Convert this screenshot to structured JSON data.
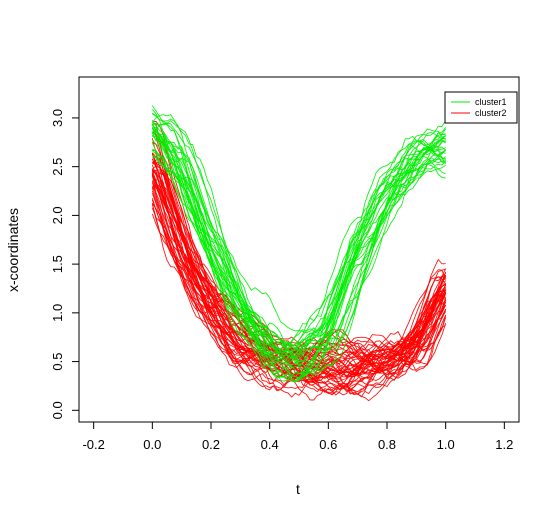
{
  "chart_data": {
    "type": "line",
    "title": "",
    "xlabel": "t",
    "ylabel": "x-coordinates",
    "xlim": [
      -0.25,
      1.25
    ],
    "ylim": [
      -0.12,
      3.42
    ],
    "xticks": [
      -0.2,
      0.0,
      0.2,
      0.4,
      0.6,
      0.8,
      1.0,
      1.2
    ],
    "xtick_labels": [
      "-0.2",
      "0.0",
      "0.2",
      "0.4",
      "0.6",
      "0.8",
      "1.0",
      "1.2"
    ],
    "yticks": [
      0.0,
      0.5,
      1.0,
      1.5,
      2.0,
      2.5,
      3.0
    ],
    "ytick_labels": [
      "0.0",
      "0.5",
      "1.0",
      "1.5",
      "2.0",
      "2.5",
      "3.0"
    ],
    "grid": false,
    "legend_position": "top-right",
    "legend": [
      {
        "label": "cluster1",
        "color": "#00ee00"
      },
      {
        "label": "cluster2",
        "color": "#ff0000"
      }
    ],
    "series": [
      {
        "name": "cluster1",
        "color": "#00ee00",
        "curve_count": 30,
        "representative": {
          "x": [
            0.0,
            0.1,
            0.2,
            0.3,
            0.4,
            0.5,
            0.6,
            0.7,
            0.8,
            0.9,
            1.0
          ],
          "y": [
            2.9,
            2.55,
            1.75,
            1.05,
            0.6,
            0.5,
            0.75,
            1.55,
            2.2,
            2.6,
            2.7
          ]
        }
      },
      {
        "name": "cluster2",
        "color": "#ff0000",
        "curve_count": 50,
        "representative": {
          "x": [
            0.0,
            0.1,
            0.2,
            0.3,
            0.4,
            0.5,
            0.6,
            0.7,
            0.8,
            0.9,
            1.0
          ],
          "y": [
            2.6,
            1.65,
            1.05,
            0.7,
            0.55,
            0.45,
            0.45,
            0.45,
            0.5,
            0.65,
            1.3
          ]
        }
      }
    ]
  }
}
